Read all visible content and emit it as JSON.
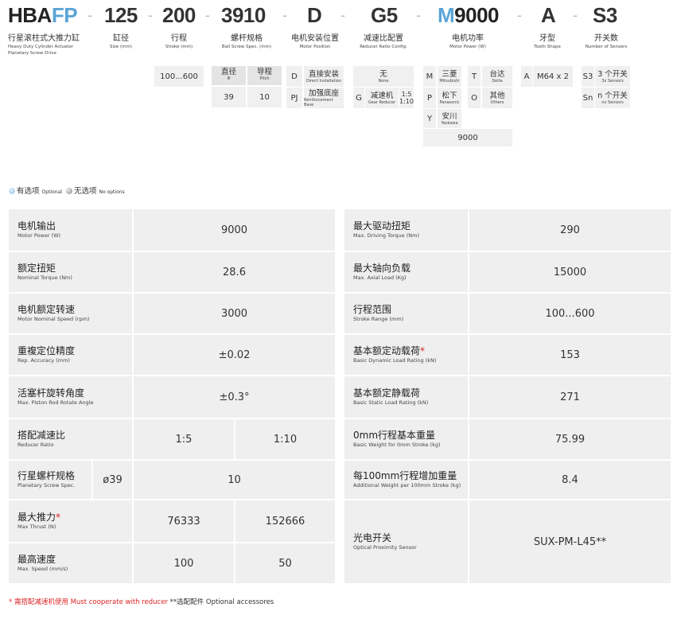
{
  "model": {
    "p1a": "HBA",
    "p1b": "FP",
    "p2": "125",
    "p3": "200",
    "p4": "3910",
    "p5": "D",
    "p6": "G5",
    "p7a": "M",
    "p7b": "9000",
    "p8": "A",
    "p9": "S3",
    "dash": "-"
  },
  "labels": {
    "product_zh": "行星滚柱式大推力缸",
    "product_en1": "Heavy Duty Cylinder Actuator",
    "product_en2": "Planetary Screw Drive",
    "size_zh": "缸径",
    "size_en": "Size (mm)",
    "stroke_zh": "行程",
    "stroke_en": "Stroke (mm)",
    "screw_zh": "螺杆规格",
    "screw_en": "Ball Screw Spec. (mm)",
    "motorpos_zh": "电机安装位置",
    "motorpos_en": "Motor Position",
    "reducer_zh": "减速比配置",
    "reducer_en": "Reducer Ratio Config.",
    "power_zh": "电机功率",
    "power_en": "Motor Power (W)",
    "tooth_zh": "牙型",
    "tooth_en": "Tooth Shape",
    "sensors_zh": "开关数",
    "sensors_en": "Number of Sensors"
  },
  "options": {
    "stroke": "100...600",
    "dia_zh": "直径",
    "dia_sym": "Φ",
    "pitch_zh": "导程",
    "pitch_en": "Pitch",
    "dia_val": "39",
    "pitch_val": "10",
    "pos_d": "D",
    "pos_d_zh": "直接安装",
    "pos_d_en": "Direct Installation",
    "pos_pj": "PJ",
    "pos_pj_zh": "加强底座",
    "pos_pj_en": "Reinforcement Base",
    "red_none_zh": "无",
    "red_none_en": "None",
    "red_g": "G",
    "red_g_zh": "减速机",
    "red_g_en": "Gear Reducer",
    "red_r1": "1:5",
    "red_r2": "1:10",
    "m_m": "M",
    "m_m_zh": "三菱",
    "m_m_en": "Mitsubishi",
    "m_t": "T",
    "m_t_zh": "台达",
    "m_t_en": "Delta",
    "m_p": "P",
    "m_p_zh": "松下",
    "m_p_en": "Panasonic",
    "m_o": "O",
    "m_o_zh": "其他",
    "m_o_en": "Others",
    "m_y": "Y",
    "m_y_zh": "安川",
    "m_y_en": "Yaskawa",
    "m_val": "9000",
    "tooth_a": "A",
    "tooth_val": "M64 x 2",
    "s3": "S3",
    "s3_zh": "3 个开关",
    "s3_en": "3x Sensors",
    "sn": "Sn",
    "sn_zh": "n 个开关",
    "sn_en": "nx Sensors"
  },
  "legend": {
    "optional_zh": "有选项",
    "optional_en": "Optional",
    "none_zh": "无选项",
    "none_en": "No options"
  },
  "colors": {
    "accent": "#5aa4d6",
    "table_bg": "#efefef",
    "note_red": "#d22222"
  },
  "left_table": {
    "motor_power": {
      "zh": "电机输出",
      "en": "Motor Power (W)",
      "value": "9000"
    },
    "torque": {
      "zh": "额定扭矩",
      "en": "Nominal Torque (Nm)",
      "value": "28.6"
    },
    "speed": {
      "zh": "电机额定转速",
      "en": "Motor Nominal Speed (rpm)",
      "value": "3000"
    },
    "accuracy": {
      "zh": "重複定位精度",
      "en": "Rep. Accuracy (mm)",
      "value": "±0.02"
    },
    "rotate": {
      "zh": "活塞杆旋转角度",
      "en": "Max. Piston Rod Rotate Angle",
      "value": "±0.3°"
    },
    "ratio": {
      "zh": "搭配减速比",
      "en": "Reducer Ratio",
      "v1": "1:5",
      "v2": "1:10"
    },
    "screw": {
      "zh": "行星螺杆规格",
      "en": "Planetary Screw Spec.",
      "dia": "ø39",
      "value": "10"
    },
    "thrust": {
      "zh": "最大推力",
      "mark": "*",
      "en": "Max Thrust (N)",
      "v1": "76333",
      "v2": "152666"
    },
    "maxspeed": {
      "zh": "最高速度",
      "en": "Max. Speed (mm/s)",
      "v1": "100",
      "v2": "50"
    }
  },
  "right_table": {
    "drive_torque": {
      "zh": "最大驱动扭矩",
      "en": "Max. Driving Torque (Nm)",
      "value": "290"
    },
    "axial": {
      "zh": "最大轴向负载",
      "en": "Max. Axial Load (Kg)",
      "value": "15000"
    },
    "stroke": {
      "zh": "行程范围",
      "en": "Stroke Range (mm)",
      "value": "100...600"
    },
    "dyn": {
      "zh": "基本额定动载荷",
      "mark": "*",
      "en": "Basic Dynamic Load Rating (kN)",
      "value": "153"
    },
    "stat": {
      "zh": "基本额定静载荷",
      "en": "Basic Static Load Rating (kN)",
      "value": "271"
    },
    "weight0": {
      "zh": "0mm行程基本重量",
      "en": "Basic Weight for 0mm Stroke (kg)",
      "value": "75.99"
    },
    "weight100": {
      "zh": "每100mm行程增加重量",
      "en": "Additional Weight per 100mm Stroke (kg)",
      "value": "8.4"
    },
    "sensor": {
      "zh": "光电开关",
      "en": "Optical Proximity Sensor",
      "value": "SUX-PM-L45**"
    }
  },
  "footer": {
    "note1": "* 需搭配减速机使用 Must cooperate with reducer",
    "note2": "**选配配件 Optional accessores"
  }
}
